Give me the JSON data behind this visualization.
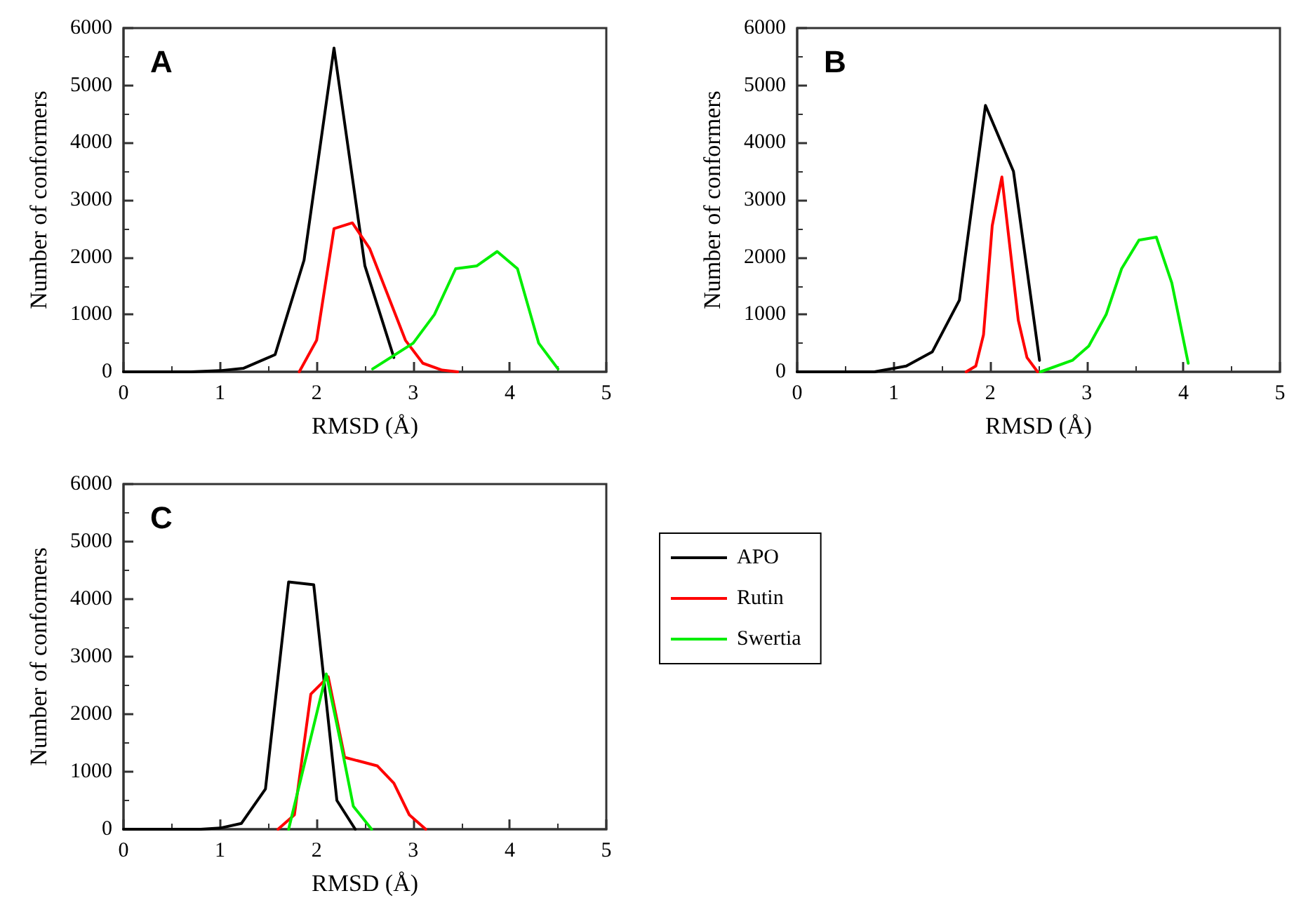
{
  "chart_data": [
    {
      "type": "line",
      "title": "A",
      "xlabel": "RMSD (Å)",
      "ylabel": "Number of conformers",
      "xlim": [
        0,
        5
      ],
      "ylim": [
        0,
        6000
      ],
      "xticks": [
        0,
        1,
        2,
        3,
        4,
        5
      ],
      "yticks": [
        0,
        1000,
        2000,
        3000,
        4000,
        5000,
        6000
      ],
      "grid": false,
      "legend": false,
      "marker": "none",
      "line_style": "solid",
      "series": [
        {
          "color": "#000000",
          "x": [
            0,
            0.7,
            1.0,
            1.24,
            1.57,
            1.87,
            2.18,
            2.5,
            2.8
          ],
          "values": [
            0,
            0,
            20,
            60,
            300,
            1950,
            5650,
            1850,
            250
          ]
        },
        {
          "color": "#ff0000",
          "x": [
            1.82,
            2.0,
            2.18,
            2.37,
            2.55,
            2.92,
            3.1,
            3.3,
            3.46
          ],
          "values": [
            0,
            550,
            2500,
            2600,
            2150,
            550,
            150,
            30,
            0
          ]
        },
        {
          "color": "#00ee00",
          "x": [
            2.58,
            3.0,
            3.22,
            3.44,
            3.66,
            3.87,
            4.08,
            4.3,
            4.5
          ],
          "values": [
            50,
            500,
            1000,
            1800,
            1850,
            2100,
            1800,
            500,
            50
          ]
        }
      ]
    },
    {
      "type": "line",
      "title": "B",
      "xlabel": "RMSD (Å)",
      "ylabel": "Number of conformers",
      "xlim": [
        0,
        5
      ],
      "ylim": [
        0,
        6000
      ],
      "xticks": [
        0,
        1,
        2,
        3,
        4,
        5
      ],
      "yticks": [
        0,
        1000,
        2000,
        3000,
        4000,
        5000,
        6000
      ],
      "grid": false,
      "legend": false,
      "marker": "none",
      "line_style": "solid",
      "series": [
        {
          "color": "#000000",
          "x": [
            0,
            0.8,
            1.13,
            1.4,
            1.68,
            1.95,
            2.24,
            2.51
          ],
          "values": [
            0,
            0,
            100,
            350,
            1250,
            4650,
            3500,
            200
          ]
        },
        {
          "color": "#ff0000",
          "x": [
            1.75,
            1.85,
            1.93,
            2.02,
            2.12,
            2.29,
            2.38,
            2.49
          ],
          "values": [
            0,
            100,
            650,
            2550,
            3400,
            900,
            250,
            0
          ]
        },
        {
          "color": "#00ee00",
          "x": [
            2.52,
            2.85,
            3.02,
            3.2,
            3.36,
            3.54,
            3.72,
            3.88,
            4.05
          ],
          "values": [
            0,
            200,
            450,
            1000,
            1800,
            2300,
            2350,
            1550,
            150
          ]
        }
      ]
    },
    {
      "type": "line",
      "title": "C",
      "xlabel": "RMSD (Å)",
      "ylabel": "Number of conformers",
      "xlim": [
        0,
        5
      ],
      "ylim": [
        0,
        6000
      ],
      "xticks": [
        0,
        1,
        2,
        3,
        4,
        5
      ],
      "yticks": [
        0,
        1000,
        2000,
        3000,
        4000,
        5000,
        6000
      ],
      "grid": false,
      "legend": "right",
      "marker": "none",
      "line_style": "solid",
      "series": [
        {
          "name": "APO",
          "color": "#000000",
          "x": [
            0,
            0.8,
            1.0,
            1.22,
            1.47,
            1.71,
            1.97,
            2.21,
            2.4
          ],
          "values": [
            0,
            0,
            20,
            100,
            700,
            4300,
            4250,
            500,
            0
          ]
        },
        {
          "name": "Rutin",
          "color": "#ff0000",
          "x": [
            1.6,
            1.77,
            1.94,
            2.12,
            2.29,
            2.63,
            2.8,
            2.96,
            3.13
          ],
          "values": [
            0,
            250,
            2350,
            2650,
            1250,
            1100,
            800,
            250,
            0
          ]
        },
        {
          "name": "Swertia",
          "color": "#00ee00",
          "x": [
            1.71,
            2.1,
            2.25,
            2.38,
            2.57
          ],
          "values": [
            0,
            2700,
            1500,
            400,
            0
          ]
        }
      ]
    }
  ]
}
